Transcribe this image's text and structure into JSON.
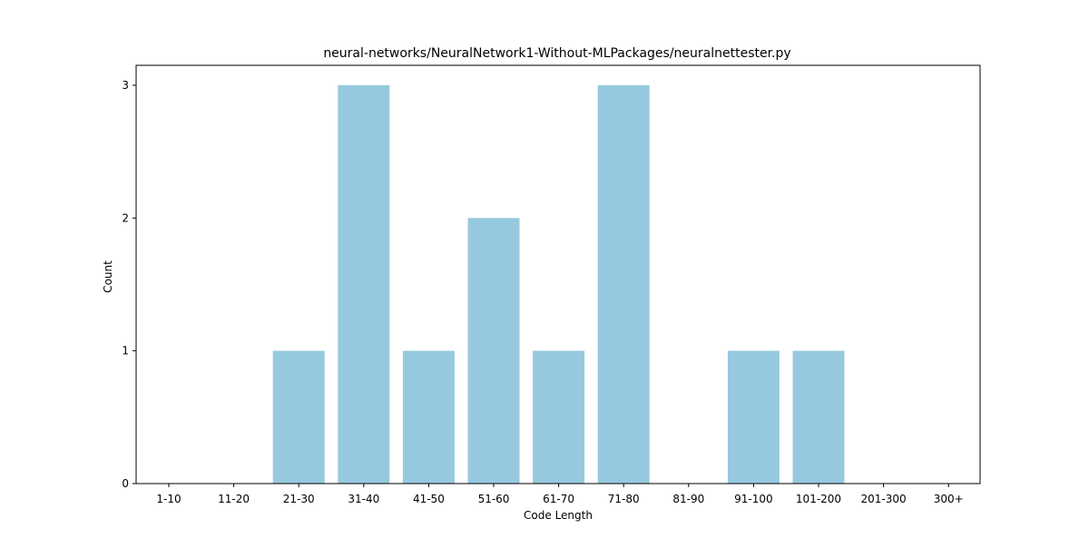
{
  "chart_data": {
    "type": "bar",
    "title": "neural-networks/NeuralNetwork1-Without-MLPackages/neuralnettester.py",
    "xlabel": "Code Length",
    "ylabel": "Count",
    "categories": [
      "1-10",
      "11-20",
      "21-30",
      "31-40",
      "41-50",
      "51-60",
      "61-70",
      "71-80",
      "81-90",
      "91-100",
      "101-200",
      "201-300",
      "300+"
    ],
    "values": [
      0,
      0,
      1,
      3,
      1,
      2,
      1,
      3,
      0,
      1,
      1,
      0,
      0
    ],
    "ylim": [
      0,
      3.15
    ],
    "yticks": [
      0,
      1,
      2,
      3
    ],
    "bar_color": "#96c9de",
    "grid": false,
    "legend": "none"
  }
}
